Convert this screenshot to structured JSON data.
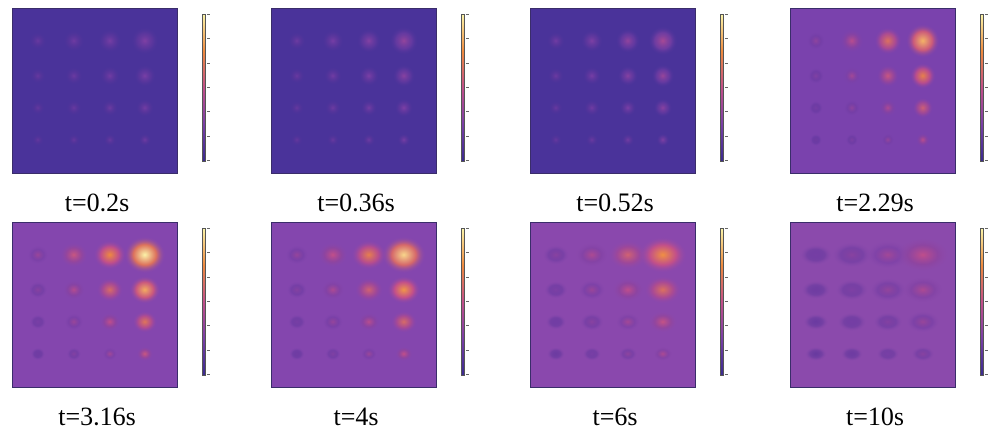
{
  "colorbar": {
    "colors": [
      "#3b2a8f",
      "#7a3fa6",
      "#c24f8a",
      "#ef8a3e",
      "#fbf3a8"
    ]
  },
  "panels": [
    {
      "caption": "t=0.2s",
      "bg": "#4a339a",
      "intensity": 0.14,
      "spread": 1.0
    },
    {
      "caption": "t=0.36s",
      "bg": "#4a339a",
      "intensity": 0.22,
      "spread": 1.0
    },
    {
      "caption": "t=0.52s",
      "bg": "#4a339a",
      "intensity": 0.3,
      "spread": 1.0
    },
    {
      "caption": "t=2.29s",
      "bg": "#7a42ad",
      "intensity": 0.82,
      "spread": 1.0
    },
    {
      "caption": "t=3.16s",
      "bg": "#8446ae",
      "intensity": 1.0,
      "spread": 1.15
    },
    {
      "caption": "t=4s",
      "bg": "#8446ae",
      "intensity": 0.92,
      "spread": 1.25
    },
    {
      "caption": "t=6s",
      "bg": "#8a48ad",
      "intensity": 0.72,
      "spread": 1.45
    },
    {
      "caption": "t=10s",
      "bg": "#8b4aac",
      "intensity": 0.4,
      "spread": 1.8
    }
  ]
}
